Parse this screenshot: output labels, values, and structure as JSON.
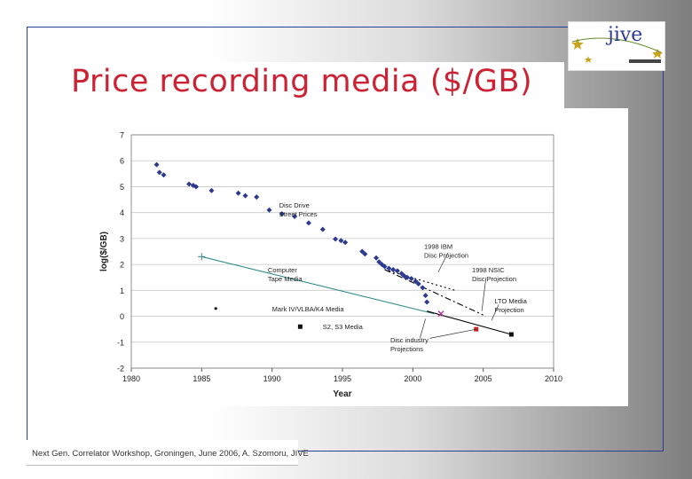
{
  "slide": {
    "title": "Price recording media ($/GB)",
    "footer": "Next Gen. Correlator Workshop, Groningen, June 2006, A. Szomoru, JIVE",
    "logo": {
      "name": "jive",
      "text": "jive"
    }
  },
  "chart_data": {
    "type": "scatter",
    "xlabel": "Year",
    "ylabel": "log($/GB)",
    "xlim": [
      1980,
      2010
    ],
    "ylim": [
      -2,
      7
    ],
    "xticks": [
      1980,
      1985,
      1990,
      1995,
      2000,
      2005,
      2010
    ],
    "yticks": [
      7,
      6,
      5,
      4,
      3,
      2,
      1,
      0,
      -1,
      -2
    ],
    "grid": "horizontal",
    "series": [
      {
        "name": "Disc Drive Street Prices",
        "marker": "diamond",
        "color": "#2b3a8f",
        "points": [
          [
            1981.8,
            5.85
          ],
          [
            1982.0,
            5.55
          ],
          [
            1982.3,
            5.45
          ],
          [
            1984.1,
            5.1
          ],
          [
            1984.4,
            5.05
          ],
          [
            1984.6,
            5.0
          ],
          [
            1985.7,
            4.85
          ],
          [
            1987.6,
            4.75
          ],
          [
            1988.1,
            4.65
          ],
          [
            1988.9,
            4.6
          ],
          [
            1989.8,
            4.1
          ],
          [
            1990.7,
            3.95
          ],
          [
            1991.6,
            3.85
          ],
          [
            1992.6,
            3.6
          ],
          [
            1993.6,
            3.35
          ],
          [
            1994.5,
            2.98
          ],
          [
            1994.9,
            2.92
          ],
          [
            1995.2,
            2.85
          ],
          [
            1996.4,
            2.5
          ],
          [
            1996.6,
            2.4
          ],
          [
            1997.4,
            2.25
          ],
          [
            1997.6,
            2.1
          ],
          [
            1997.8,
            2.0
          ],
          [
            1998.0,
            1.92
          ],
          [
            1998.3,
            1.85
          ],
          [
            1998.6,
            1.8
          ],
          [
            1998.9,
            1.75
          ],
          [
            1999.2,
            1.65
          ],
          [
            1999.4,
            1.55
          ],
          [
            1999.6,
            1.5
          ],
          [
            1999.9,
            1.45
          ],
          [
            2000.2,
            1.35
          ],
          [
            2000.4,
            1.25
          ],
          [
            2000.7,
            1.1
          ],
          [
            2000.9,
            0.8
          ],
          [
            2001.0,
            0.55
          ]
        ]
      }
    ],
    "lines": [
      {
        "name": "Computer Tape Media",
        "points": [
          [
            1985,
            2.3
          ],
          [
            2001.5,
            0.1
          ]
        ],
        "color": "#2e8b8b",
        "style": "solid"
      },
      {
        "name": "1998 IBM Disc Projection",
        "points": [
          [
            1998,
            1.8
          ],
          [
            2003,
            1.0
          ]
        ],
        "color": "#000",
        "style": "dotted"
      },
      {
        "name": "1998 NSIC Disc Projection",
        "points": [
          [
            1998,
            1.8
          ],
          [
            2005,
            0.05
          ]
        ],
        "color": "#000",
        "style": "dashdot"
      },
      {
        "name": "LTO Media Projection",
        "points": [
          [
            2001,
            0.2
          ],
          [
            2007,
            -0.7
          ]
        ],
        "color": "#000",
        "style": "solid"
      }
    ],
    "markers": [
      {
        "name": "Mark IV/VLBA/K4 Media",
        "x": 1986,
        "y": 0.3,
        "shape": "dot"
      },
      {
        "name": "S2, S3 Media",
        "x": 1992,
        "y": -0.4,
        "shape": "square"
      },
      {
        "name": "projection-x",
        "x": 2002,
        "y": 0.1,
        "shape": "x",
        "color": "#aa3399"
      },
      {
        "name": "lto-point",
        "x": 2004.5,
        "y": -0.5,
        "shape": "square",
        "color": "#cc2222"
      },
      {
        "name": "lto-point-2",
        "x": 2007,
        "y": -0.7,
        "shape": "square"
      }
    ],
    "annotations": [
      {
        "text": "Disc Drive\nStreet Prices",
        "x": 1990.5,
        "y": 4.3
      },
      {
        "text": "Computer\nTape Media",
        "x": 1989.7,
        "y": 1.8
      },
      {
        "text": "1998 IBM\nDisc Projection",
        "x": 2000.8,
        "y": 2.7
      },
      {
        "text": "1998 NSIC\nDisc Projection",
        "x": 2004.2,
        "y": 1.8
      },
      {
        "text": "LTO Media\nProjection",
        "x": 2005.8,
        "y": 0.6
      },
      {
        "text": "Mark IV/VLBA/K4 Media",
        "x": 1990.0,
        "y": 0.3
      },
      {
        "text": "S2, S3 Media",
        "x": 1993.6,
        "y": -0.4
      },
      {
        "text": "Disc industry\nProjections",
        "x": 1998.4,
        "y": -0.9
      }
    ]
  }
}
